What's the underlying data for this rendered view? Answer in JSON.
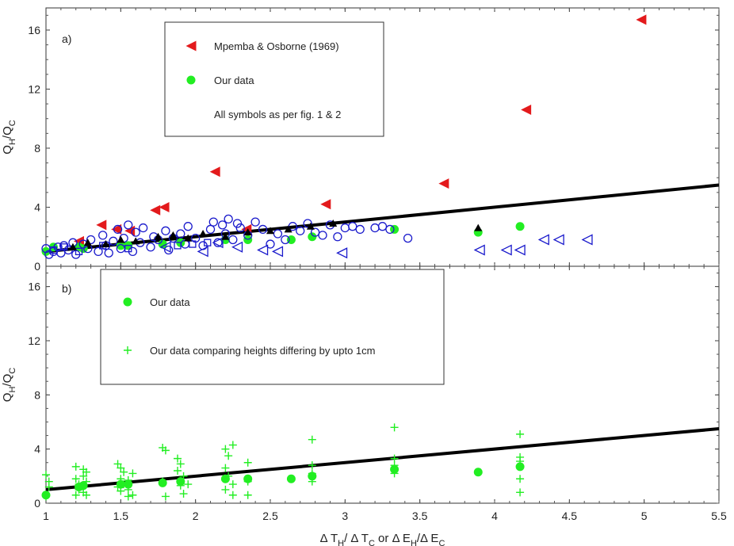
{
  "colors": {
    "red": "#e31a1c",
    "green": "#22ee22",
    "blue": "#1a1acc",
    "black": "#000000"
  },
  "chart_data": [
    {
      "type": "scatter",
      "panel_label": "a)",
      "ylabel": {
        "main": "Q",
        "sub1": "H",
        "sep": "/Q",
        "sub2": "C"
      },
      "xlim": [
        1,
        5.5
      ],
      "ylim": [
        0,
        17.5
      ],
      "yticks": [
        "0",
        "4",
        "8",
        "12",
        "16"
      ],
      "legend": {
        "placement": "top-left",
        "entries": [
          {
            "symbol": "red-triangle",
            "label": "Mpemba & Osborne (1969)"
          },
          {
            "symbol": "green-circle",
            "label": "Our data"
          },
          {
            "symbol": "none",
            "label": "All symbols as per fig. 1 & 2"
          }
        ]
      },
      "fit_line": {
        "x": [
          1,
          5.5
        ],
        "y": [
          1.0,
          5.5
        ]
      },
      "series": [
        {
          "name": "Mpemba & Osborne (1969)",
          "marker": "red-triangle",
          "x": [
            1.22,
            1.37,
            1.47,
            1.56,
            1.73,
            1.79,
            2.13,
            2.34,
            2.87,
            3.66,
            4.21,
            4.98
          ],
          "y": [
            1.7,
            2.8,
            2.5,
            2.4,
            3.8,
            4.0,
            6.4,
            2.5,
            4.2,
            5.6,
            10.6,
            16.7
          ]
        },
        {
          "name": "Our data",
          "marker": "green-circle",
          "x": [
            1.0,
            1.05,
            1.22,
            1.25,
            1.5,
            1.55,
            1.78,
            1.9,
            2.2,
            2.35,
            2.64,
            2.78,
            3.33,
            3.89,
            4.17
          ],
          "y": [
            1.0,
            1.3,
            1.3,
            1.2,
            1.4,
            1.4,
            1.5,
            1.6,
            1.8,
            1.8,
            1.8,
            2.0,
            2.5,
            2.3,
            2.7
          ]
        },
        {
          "name": "Open circles (fig. 1 & 2)",
          "marker": "blue-open-circle",
          "x": [
            1.0,
            1.02,
            1.05,
            1.08,
            1.1,
            1.12,
            1.15,
            1.18,
            1.2,
            1.25,
            1.28,
            1.3,
            1.35,
            1.38,
            1.4,
            1.42,
            1.45,
            1.48,
            1.5,
            1.52,
            1.55,
            1.58,
            1.6,
            1.63,
            1.65,
            1.7,
            1.72,
            1.75,
            1.8,
            1.82,
            1.85,
            1.9,
            1.93,
            1.95,
            2.0,
            2.05,
            2.1,
            2.12,
            2.15,
            2.18,
            2.2,
            2.22,
            2.25,
            2.28,
            2.3,
            2.35,
            2.4,
            2.45,
            2.5,
            2.55,
            2.6,
            2.65,
            2.7,
            2.75,
            2.8,
            2.85,
            2.9,
            2.95,
            3.0,
            3.05,
            3.1,
            3.2,
            3.25,
            3.3,
            3.42
          ],
          "y": [
            1.2,
            0.8,
            1.0,
            1.3,
            0.9,
            1.4,
            1.1,
            1.6,
            0.8,
            1.5,
            1.2,
            1.8,
            1.0,
            2.1,
            1.4,
            0.9,
            1.7,
            2.5,
            1.2,
            1.9,
            2.8,
            1.0,
            2.3,
            1.6,
            2.6,
            1.3,
            2.0,
            1.8,
            2.4,
            1.1,
            1.9,
            2.2,
            1.5,
            2.7,
            1.9,
            1.4,
            2.5,
            3.0,
            1.6,
            2.8,
            2.2,
            3.2,
            1.8,
            2.9,
            2.6,
            2.1,
            3.0,
            2.5,
            1.5,
            2.2,
            1.8,
            2.7,
            2.4,
            2.9,
            2.3,
            2.1,
            2.8,
            2.0,
            2.6,
            2.7,
            2.5,
            2.6,
            2.7,
            2.5,
            1.9
          ]
        },
        {
          "name": "Open left triangles (fig. 1 & 2)",
          "marker": "blue-open-triangle-left",
          "x": [
            1.8,
            2.05,
            2.15,
            2.28,
            2.45,
            2.55,
            2.98,
            3.9,
            4.08,
            4.17,
            4.33,
            4.43,
            4.62
          ],
          "y": [
            1.3,
            1.0,
            1.6,
            1.3,
            1.1,
            1.0,
            0.9,
            1.1,
            1.1,
            1.1,
            1.8,
            1.8,
            1.8
          ]
        },
        {
          "name": "Open squares (fig. 1 & 2)",
          "marker": "blue-open-square",
          "x": [
            1.05,
            1.12,
            1.22,
            1.38,
            1.55,
            1.88,
            1.98,
            2.08
          ],
          "y": [
            1.1,
            1.3,
            1.0,
            1.4,
            1.2,
            1.4,
            1.5,
            1.6
          ]
        },
        {
          "name": "Black triangles (fig. 1 & 2)",
          "marker": "black-triangle",
          "x": [
            1.18,
            1.28,
            1.4,
            1.5,
            1.6,
            1.75,
            1.85,
            1.95,
            2.05,
            2.2,
            2.35,
            2.5,
            2.62,
            2.77,
            2.92,
            3.89
          ],
          "y": [
            1.3,
            1.6,
            1.5,
            1.8,
            1.7,
            2.0,
            2.1,
            1.9,
            2.2,
            2.0,
            2.3,
            2.4,
            2.5,
            2.7,
            2.9,
            2.6
          ]
        }
      ]
    },
    {
      "type": "scatter",
      "panel_label": "b)",
      "ylabel": {
        "main": "Q",
        "sub1": "H",
        "sep": "/Q",
        "sub2": "C"
      },
      "xlabel": {
        "d1": "Δ T",
        "s1": "H",
        "m1": "/ Δ T",
        "s2": "C",
        "m2": " or Δ E",
        "s3": "H",
        "m3": "/Δ E",
        "s4": "C"
      },
      "xlim": [
        1,
        5.5
      ],
      "ylim": [
        0,
        17.5
      ],
      "xticks": [
        "1",
        "1.5",
        "2",
        "2.5",
        "3",
        "3.5",
        "4",
        "4.5",
        "5",
        "5.5"
      ],
      "yticks": [
        "0",
        "4",
        "8",
        "12",
        "16"
      ],
      "legend": {
        "placement": "top-left",
        "entries": [
          {
            "symbol": "green-circle",
            "label": "Our data"
          },
          {
            "symbol": "green-plus",
            "label": "Our data comparing heights differing by upto 1cm"
          }
        ]
      },
      "fit_line": {
        "x": [
          1,
          5.5
        ],
        "y": [
          1.0,
          5.5
        ]
      },
      "series": [
        {
          "name": "Our data",
          "marker": "green-circle",
          "x": [
            1.0,
            1.22,
            1.25,
            1.5,
            1.55,
            1.78,
            1.9,
            2.2,
            2.35,
            2.64,
            2.78,
            3.33,
            3.89,
            4.17
          ],
          "y": [
            0.6,
            1.2,
            1.3,
            1.4,
            1.4,
            1.5,
            1.6,
            1.8,
            1.8,
            1.8,
            2.0,
            2.5,
            2.3,
            2.7
          ]
        },
        {
          "name": "Our data comparing heights differing by upto 1cm",
          "marker": "green-plus",
          "x": [
            1.0,
            1.0,
            1.02,
            1.02,
            1.2,
            1.2,
            1.2,
            1.22,
            1.22,
            1.25,
            1.25,
            1.25,
            1.27,
            1.27,
            1.27,
            1.48,
            1.48,
            1.5,
            1.5,
            1.5,
            1.52,
            1.52,
            1.55,
            1.55,
            1.55,
            1.58,
            1.58,
            1.78,
            1.78,
            1.8,
            1.8,
            1.88,
            1.88,
            1.9,
            1.9,
            1.92,
            1.92,
            1.95,
            2.2,
            2.2,
            2.2,
            2.22,
            2.22,
            2.25,
            2.25,
            2.25,
            2.35,
            2.35,
            2.35,
            2.78,
            2.78,
            2.78,
            2.78,
            3.33,
            3.33,
            3.33,
            3.33,
            4.17,
            4.17,
            4.17,
            4.17,
            4.17
          ],
          "y": [
            2.1,
            0.5,
            1.2,
            1.6,
            2.7,
            1.8,
            0.6,
            1.0,
            1.4,
            2.5,
            2.0,
            0.8,
            2.3,
            1.6,
            0.6,
            2.9,
            1.2,
            2.6,
            1.8,
            0.9,
            2.3,
            1.4,
            1.7,
            1.0,
            0.5,
            2.2,
            0.6,
            4.1,
            1.6,
            3.9,
            0.5,
            3.3,
            2.4,
            2.9,
            1.3,
            2.0,
            0.7,
            1.4,
            4.0,
            2.6,
            1.0,
            3.5,
            2.0,
            4.3,
            1.4,
            0.6,
            3.0,
            1.6,
            0.6,
            4.7,
            2.8,
            2.2,
            1.6,
            5.6,
            3.3,
            2.8,
            2.2,
            5.1,
            3.4,
            3.1,
            1.8,
            0.8
          ]
        }
      ]
    }
  ]
}
